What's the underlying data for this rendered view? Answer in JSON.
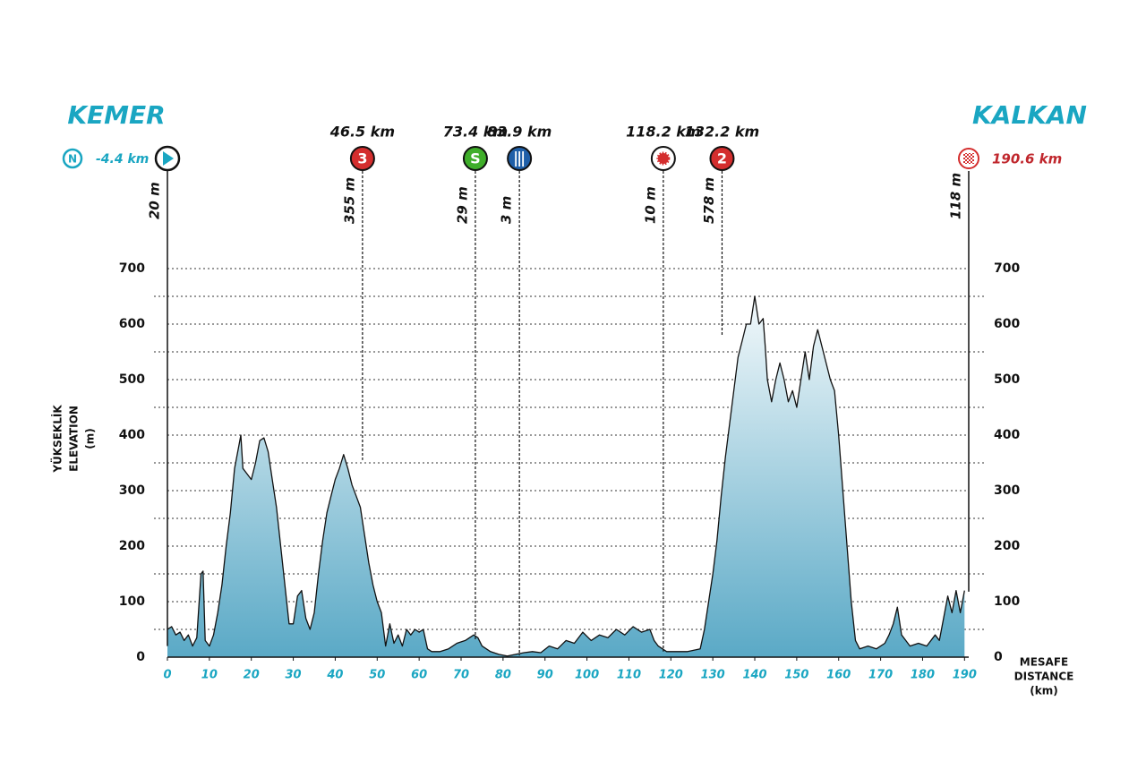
{
  "chart_data": {
    "type": "area",
    "x": [
      0,
      1,
      2,
      3,
      4,
      5,
      6,
      7,
      8,
      8.5,
      9,
      10,
      11,
      12,
      13,
      14,
      15,
      16,
      17,
      17.5,
      18,
      19,
      20,
      21,
      22,
      23,
      24,
      25,
      26,
      27,
      28,
      29,
      30,
      31,
      32,
      33,
      34,
      35,
      36,
      37,
      38,
      39,
      40,
      41,
      42,
      43,
      44,
      45,
      46,
      47,
      48,
      49,
      50,
      51,
      52,
      53,
      54,
      55,
      56,
      57,
      58,
      59,
      60,
      61,
      62,
      63,
      65,
      67,
      69,
      71,
      73,
      74,
      75,
      77,
      79,
      81,
      83,
      85,
      87,
      89,
      91,
      93,
      95,
      97,
      99,
      101,
      103,
      105,
      107,
      109,
      111,
      113,
      115,
      116,
      117,
      119,
      121,
      124,
      127,
      128,
      129,
      130,
      131,
      132,
      133,
      134,
      135,
      136,
      137,
      138,
      139,
      140,
      141,
      142,
      142.5,
      143,
      144,
      145,
      146,
      147,
      148,
      149,
      150,
      151,
      152,
      153,
      154,
      155,
      156,
      157,
      158,
      159,
      160,
      161,
      162,
      163,
      164,
      165,
      167,
      169,
      171,
      172,
      173,
      174,
      175,
      176,
      177,
      179,
      181,
      183,
      184,
      185,
      186,
      187,
      188,
      189,
      190
    ],
    "values": [
      50,
      55,
      40,
      45,
      30,
      40,
      20,
      35,
      150,
      155,
      30,
      20,
      40,
      80,
      130,
      200,
      260,
      340,
      380,
      400,
      340,
      330,
      320,
      350,
      390,
      395,
      370,
      320,
      270,
      200,
      130,
      60,
      60,
      110,
      120,
      70,
      50,
      80,
      150,
      210,
      260,
      290,
      320,
      340,
      365,
      340,
      310,
      290,
      270,
      220,
      170,
      130,
      100,
      80,
      20,
      60,
      25,
      40,
      20,
      50,
      40,
      50,
      45,
      50,
      15,
      10,
      10,
      15,
      25,
      30,
      40,
      35,
      20,
      10,
      5,
      2,
      5,
      8,
      10,
      8,
      20,
      15,
      30,
      25,
      45,
      30,
      40,
      35,
      50,
      40,
      55,
      45,
      50,
      30,
      20,
      10,
      10,
      10,
      15,
      50,
      100,
      150,
      210,
      290,
      360,
      420,
      480,
      540,
      570,
      600,
      600,
      650,
      600,
      610,
      560,
      500,
      460,
      500,
      530,
      500,
      460,
      480,
      450,
      500,
      550,
      500,
      560,
      590,
      560,
      530,
      500,
      480,
      400,
      300,
      200,
      100,
      30,
      15,
      20,
      15,
      25,
      40,
      60,
      90,
      40,
      30,
      20,
      25,
      20,
      40,
      30,
      70,
      110,
      80,
      120,
      80,
      120
    ],
    "color": "#5aa9c6",
    "xlim": [
      0,
      191
    ],
    "xticks": [
      0,
      10,
      20,
      30,
      40,
      50,
      60,
      70,
      80,
      90,
      100,
      110,
      120,
      130,
      140,
      150,
      160,
      170,
      180,
      190
    ],
    "ylim": [
      0,
      700
    ],
    "yticks": [
      0,
      100,
      200,
      300,
      400,
      500,
      600,
      700
    ],
    "minor_yticks": [
      50,
      150,
      250,
      350,
      450,
      550,
      650
    ],
    "y_label": [
      "YÜKSEKLİK",
      "ELEVATION",
      "(m)"
    ],
    "x_label": [
      "MESAFE",
      "DISTANCE",
      "(km)"
    ]
  },
  "start": {
    "name": "KEMER",
    "icon": "N",
    "km": {
      "value": -4.4,
      "label": "-4.4 km"
    },
    "elevation": {
      "value": 20,
      "label": "20 m"
    }
  },
  "finish": {
    "name": "KALKAN",
    "km": {
      "value": 190.6,
      "label": "190.6 km"
    },
    "elevation": {
      "value": 118,
      "label": "118 m"
    }
  },
  "markers": [
    {
      "icon": "3",
      "color": "#d42e2e",
      "km": {
        "value": 46.5,
        "label": "46.5 km"
      },
      "elevation": {
        "value": 355,
        "label": "355 m"
      }
    },
    {
      "icon": "S",
      "color": "#3fae2a",
      "km": {
        "value": 73.4,
        "label": "73.4 km"
      },
      "elevation": {
        "value": 29,
        "label": "29 m"
      }
    },
    {
      "color": "#1f5fa8",
      "km": {
        "value": 83.9,
        "label": "83.9 km"
      },
      "elevation": {
        "value": 3,
        "label": "3 m"
      }
    },
    {
      "color": "#d42e2e",
      "km": {
        "value": 118.2,
        "label": "118.2 km"
      },
      "elevation": {
        "value": 10,
        "label": "10 m"
      }
    },
    {
      "icon": "2",
      "color": "#d42e2e",
      "km": {
        "value": 132.2,
        "label": "132.2 km"
      },
      "elevation": {
        "value": 578,
        "label": "578 m"
      }
    }
  ]
}
